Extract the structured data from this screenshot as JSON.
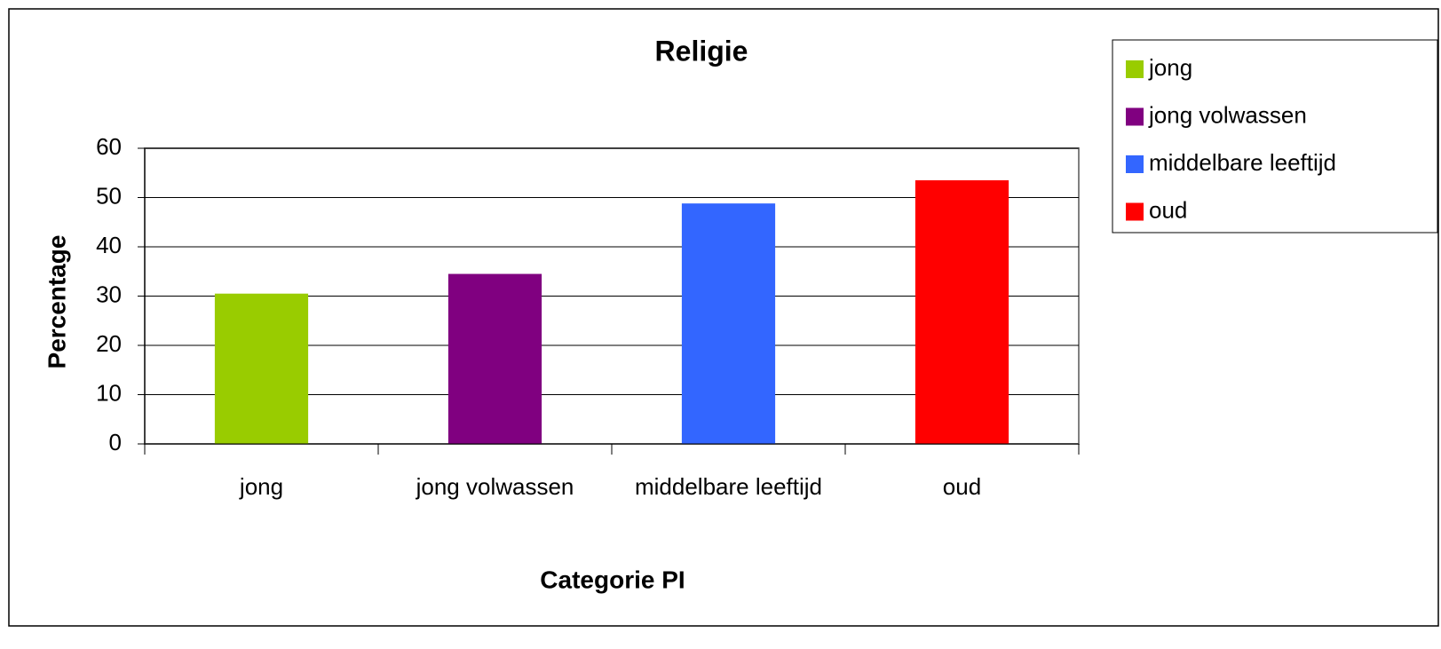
{
  "chart_data": {
    "type": "bar",
    "title": "Religie",
    "x_label": "Categorie PI",
    "y_label": "Percentage",
    "categories": [
      "jong",
      "jong volwassen",
      "middelbare leeftijd",
      "oud"
    ],
    "values": [
      30.5,
      34.5,
      48.8,
      53.5
    ],
    "colors": [
      "#99cc00",
      "#800080",
      "#3366ff",
      "#ff0000"
    ],
    "ylim": [
      0,
      60
    ],
    "yticks": [
      0,
      10,
      20,
      30,
      40,
      50,
      60
    ],
    "grid": true,
    "legend": "right"
  }
}
